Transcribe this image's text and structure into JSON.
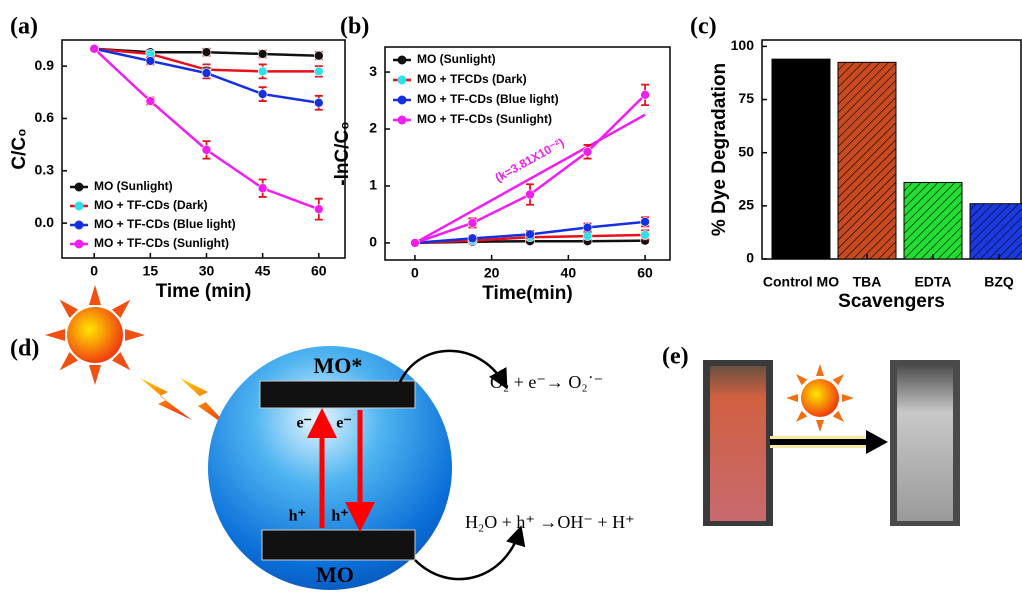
{
  "chart_data": [
    {
      "type": "line",
      "label": "(a)",
      "xlabel": "Time (min)",
      "ylabel": "C/C₀",
      "x": [
        0,
        15,
        30,
        45,
        60
      ],
      "xlim": [
        -8.6,
        67
      ],
      "ylim": [
        -0.2,
        1.05
      ],
      "xticks": [
        0,
        15,
        30,
        45,
        60
      ],
      "yticks": [
        {
          "value": 0,
          "label": "0.0"
        },
        0.3,
        0.6,
        0.9
      ],
      "legend": "lower left",
      "series": [
        {
          "name": "MO (Sunlight)",
          "color": "#111111",
          "marker_color": "#111111",
          "values": [
            1,
            0.98,
            0.98,
            0.97,
            0.96
          ],
          "errors": [
            0.01,
            0.01,
            0.02,
            0.02,
            0.02
          ]
        },
        {
          "name": "MO + TF-CDs (Dark)",
          "color": "#e8101a",
          "marker_color": "#2ee0e8",
          "values": [
            1,
            0.97,
            0.88,
            0.87,
            0.87
          ],
          "errors": [
            0.01,
            0.02,
            0.03,
            0.04,
            0.03
          ]
        },
        {
          "name": "MO + TF-CDs (Blue light)",
          "color": "#1530e0",
          "marker_color": "#1530e0",
          "values": [
            1,
            0.93,
            0.86,
            0.74,
            0.69
          ],
          "errors": [
            0.01,
            0.02,
            0.03,
            0.04,
            0.04
          ]
        },
        {
          "name": "MO + TF-CDs (Sunlight)",
          "color": "#f01ef0",
          "marker_color": "#f01ef0",
          "values": [
            1,
            0.7,
            0.42,
            0.2,
            0.08
          ],
          "errors": [
            0.01,
            0.02,
            0.05,
            0.05,
            0.06
          ]
        }
      ]
    },
    {
      "type": "line",
      "label": "(b)",
      "xlabel": "Time(min)",
      "ylabel": "-lnC/C₀",
      "x": [
        0,
        15,
        30,
        45,
        60
      ],
      "xlim": [
        -7.8,
        66.5
      ],
      "ylim": [
        -0.3,
        3.44
      ],
      "xticks": [
        0,
        20,
        40,
        60
      ],
      "yticks": [
        0,
        1,
        2,
        3
      ],
      "legend": "upper left",
      "fit": {
        "x": [
          0,
          60
        ],
        "y": [
          0,
          2.25
        ],
        "label": "(k=3.81X10⁻²)",
        "color": "#f01ef0"
      },
      "series": [
        {
          "name": "MO (Sunlight)",
          "color": "#111111",
          "marker_color": "#111111",
          "values": [
            0,
            0.02,
            0.03,
            0.03,
            0.04
          ],
          "errors": [
            0.01,
            0.03,
            0.03,
            0.04,
            0.04
          ]
        },
        {
          "name": "MO + TFCDs (Dark)",
          "color": "#e8101a",
          "marker_color": "#2ee0e8",
          "values": [
            0,
            0.04,
            0.1,
            0.12,
            0.14
          ],
          "errors": [
            0.01,
            0.05,
            0.06,
            0.06,
            0.08
          ]
        },
        {
          "name": "MO + TF-CDs (Blue light)",
          "color": "#1530e0",
          "marker_color": "#1530e0",
          "values": [
            0,
            0.08,
            0.15,
            0.27,
            0.37
          ],
          "errors": [
            0.01,
            0.05,
            0.06,
            0.07,
            0.08
          ]
        },
        {
          "name": "MO + TF-CDs (Sunlight)",
          "color": "#f01ef0",
          "marker_color": "#f01ef0",
          "values": [
            0,
            0.35,
            0.85,
            1.6,
            2.6
          ],
          "errors": [
            0.01,
            0.08,
            0.18,
            0.12,
            0.18
          ]
        }
      ]
    },
    {
      "type": "bar",
      "label": "(c)",
      "xlabel": "Scavengers",
      "ylabel": "% Dye Degradation",
      "categories": [
        "Control MO",
        "TBA",
        "EDTA",
        "BZQ"
      ],
      "values": [
        94,
        92.5,
        36,
        26
      ],
      "colors": [
        "#000000",
        "#c84a1e",
        "#22dd33",
        "#1a3ae0"
      ],
      "hatched": [
        false,
        true,
        true,
        true
      ],
      "ylim": [
        0,
        103
      ],
      "yticks": [
        0,
        25,
        50,
        75,
        100
      ]
    }
  ],
  "diagram": {
    "label": "(d)",
    "top_level": "MO*",
    "bottom_level": "MO",
    "electrons": [
      "e⁻",
      "e⁻"
    ],
    "holes": [
      "h⁺",
      "h⁺"
    ],
    "reactions": [
      "O₂ + e⁻→  O₂˙⁻",
      "H₂O + h⁺ →OH⁻ + H⁺"
    ]
  },
  "photo": {
    "label": "(e)"
  }
}
